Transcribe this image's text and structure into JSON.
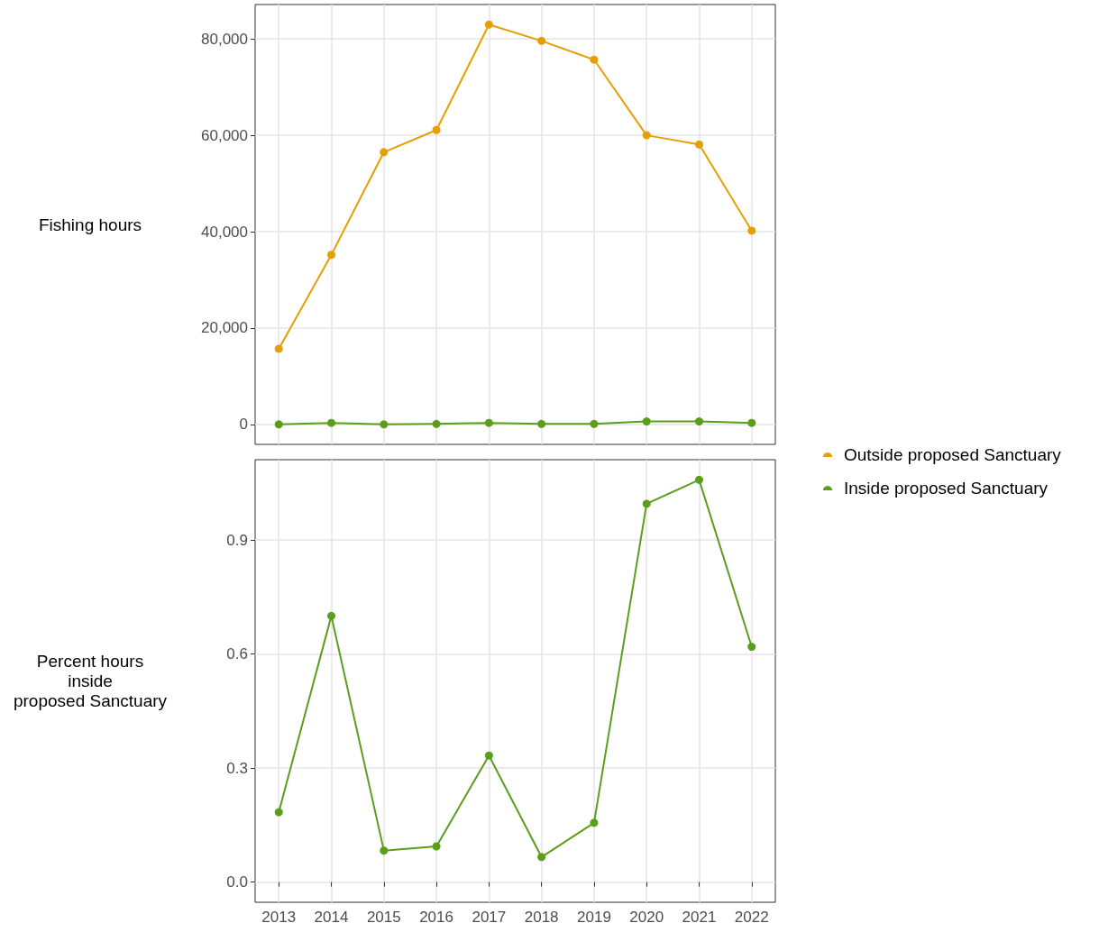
{
  "chart_data": [
    {
      "type": "line",
      "ylabel": "Fishing hours",
      "x": [
        2013,
        2014,
        2015,
        2016,
        2017,
        2018,
        2019,
        2020,
        2021,
        2022
      ],
      "series": [
        {
          "name": "Outside proposed Sanctuary",
          "color": "#e69f00",
          "values": [
            15700,
            35200,
            56500,
            61100,
            83000,
            79600,
            75700,
            60000,
            58100,
            40200
          ]
        },
        {
          "name": "Inside proposed Sanctuary",
          "color": "#5a9e1c",
          "values": [
            0,
            300,
            0,
            100,
            300,
            100,
            100,
            600,
            600,
            300
          ]
        }
      ],
      "xlim": [
        2012.55,
        2022.45
      ],
      "xticks": [
        2013,
        2014,
        2015,
        2016,
        2017,
        2018,
        2019,
        2020,
        2021,
        2022
      ],
      "ylim": [
        -4150,
        87150
      ],
      "yticks": [
        {
          "value": 0,
          "label": "0"
        },
        {
          "value": 20000,
          "label": "20,000"
        },
        {
          "value": 40000,
          "label": "40,000"
        },
        {
          "value": 60000,
          "label": "60,000"
        },
        {
          "value": 80000,
          "label": "80,000"
        }
      ],
      "tick_labels": "y",
      "grid": true,
      "legend": "right",
      "marker": "circle",
      "line_style": "solid"
    },
    {
      "type": "line",
      "ylabel": "Percent hours\ninside\nproposed Sanctuary",
      "x": [
        2013,
        2014,
        2015,
        2016,
        2017,
        2018,
        2019,
        2020,
        2021,
        2022
      ],
      "series": [
        {
          "color": "#5a9e1c",
          "values": [
            0.184,
            0.7,
            0.083,
            0.094,
            0.333,
            0.066,
            0.156,
            0.995,
            1.058,
            0.619
          ]
        }
      ],
      "xlim": [
        2012.55,
        2022.45
      ],
      "xticks": [
        2013,
        2014,
        2015,
        2016,
        2017,
        2018,
        2019,
        2020,
        2021,
        2022
      ],
      "ylim": [
        -0.053,
        1.111
      ],
      "yticks": [
        {
          "value": 0,
          "label": "0.0"
        },
        {
          "value": 0.3,
          "label": "0.3"
        },
        {
          "value": 0.6,
          "label": "0.6"
        },
        {
          "value": 0.9,
          "label": "0.9"
        }
      ],
      "grid": true,
      "marker": "circle",
      "line_style": "solid"
    }
  ]
}
